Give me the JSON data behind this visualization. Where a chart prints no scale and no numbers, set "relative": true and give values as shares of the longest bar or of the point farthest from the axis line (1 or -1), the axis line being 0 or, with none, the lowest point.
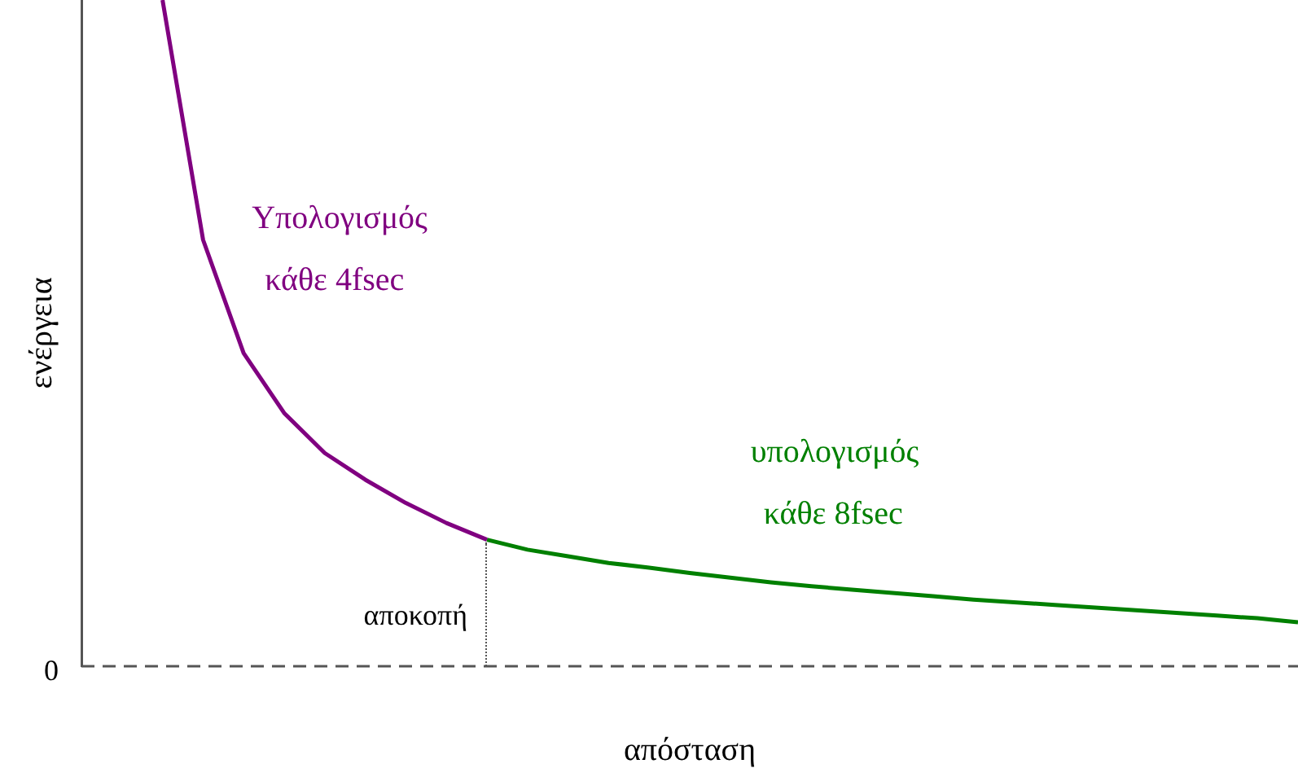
{
  "chart_data": {
    "type": "line",
    "xlabel": "απόσταση",
    "ylabel": "ενέργεια",
    "relative": true,
    "legend": false,
    "grid": false,
    "marker": "none",
    "categories": [
      null,
      null,
      null,
      null,
      null,
      null,
      null,
      null,
      null,
      null,
      null,
      null,
      null,
      null,
      null,
      null,
      null,
      null,
      null,
      null,
      null,
      null,
      null,
      null,
      null,
      null,
      null,
      null,
      null,
      null,
      null
    ],
    "series": [
      {
        "name": "Υπολογισμός κάθε 4fsec",
        "color": "#800080",
        "values": [
          null,
          null,
          1.0,
          0.64,
          0.47,
          0.38,
          0.32,
          0.28,
          0.245,
          0.215,
          0.19,
          null,
          null,
          null,
          null,
          null,
          null,
          null,
          null,
          null,
          null,
          null,
          null,
          null,
          null,
          null,
          null,
          null,
          null,
          null,
          null
        ]
      },
      {
        "name": "υπολογισμός κάθε 8fsec",
        "color": "#008000",
        "values": [
          null,
          null,
          null,
          null,
          null,
          null,
          null,
          null,
          null,
          null,
          0.19,
          0.175,
          0.165,
          0.155,
          0.148,
          0.14,
          0.133,
          0.126,
          0.12,
          0.115,
          0.11,
          0.105,
          0.1,
          0.096,
          0.092,
          0.088,
          0.084,
          0.08,
          0.076,
          0.072,
          0.066
        ]
      }
    ],
    "annotations": [
      "0",
      "αποκοπή"
    ]
  }
}
